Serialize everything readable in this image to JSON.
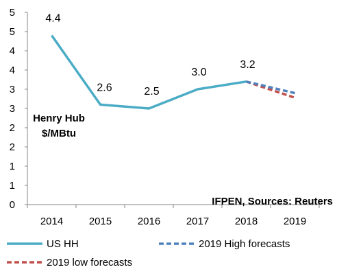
{
  "chart_data": {
    "type": "line",
    "categories": [
      "2014",
      "2015",
      "2016",
      "2017",
      "2018",
      "2019"
    ],
    "y_tick_labels": [
      "0",
      "1",
      "1",
      "2",
      "2",
      "3",
      "3",
      "4",
      "4",
      "5",
      "5"
    ],
    "ylim": [
      0,
      5
    ],
    "grid": false,
    "legend_position": "bottom",
    "series": [
      {
        "name": "US HH",
        "color": "#4BACC6",
        "style": "solid",
        "values": [
          4.4,
          2.6,
          2.5,
          3.0,
          3.2,
          null
        ],
        "labels": [
          "4.4",
          "2.6",
          "2.5",
          "3.0",
          "3.2",
          ""
        ]
      },
      {
        "name": "2019 High forecasts",
        "color": "#4F81BD",
        "style": "dashed",
        "values": [
          null,
          null,
          null,
          null,
          3.2,
          2.9
        ],
        "labels": []
      },
      {
        "name": "2019 low forecasts",
        "color": "#C0504D",
        "style": "dashed",
        "values": [
          null,
          null,
          null,
          null,
          3.2,
          2.78
        ],
        "labels": []
      }
    ],
    "annotations": {
      "unit_line1": "Henry Hub",
      "unit_line2": "$/MBtu",
      "source": "IFPEN, Sources: Reuters"
    }
  }
}
